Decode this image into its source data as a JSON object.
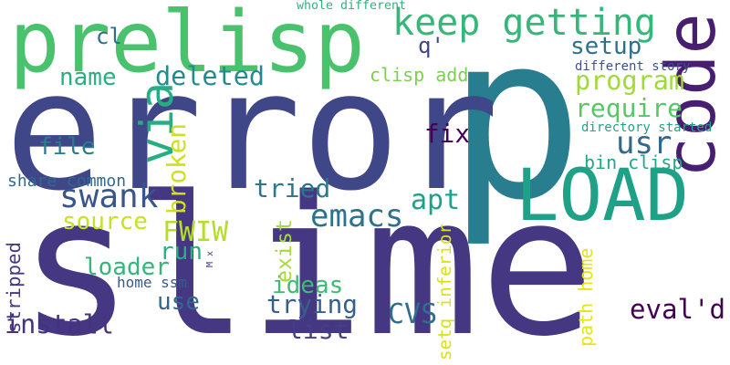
{
  "words": [
    {
      "text": "slime",
      "color": "#453781"
    },
    {
      "text": "p",
      "color": "#287d8e"
    },
    {
      "text": "error",
      "color": "#3f4788"
    },
    {
      "text": "prelisp",
      "color": "#4ac16d"
    },
    {
      "text": "LOAD",
      "color": "#1fa187"
    },
    {
      "text": "code",
      "color": "#481f70"
    },
    {
      "text": "keep getting",
      "color": "#35b779"
    },
    {
      "text": "swank",
      "color": "#39568c"
    },
    {
      "text": "emacs",
      "color": "#2c728e"
    },
    {
      "text": "via",
      "color": "#27ad81"
    },
    {
      "text": "usr",
      "color": "#31688e"
    },
    {
      "text": "deleted",
      "color": "#238a8d"
    },
    {
      "text": "name",
      "color": "#29af7f"
    },
    {
      "text": "program",
      "color": "#a0da39"
    },
    {
      "text": "require",
      "color": "#56c667"
    },
    {
      "text": "setup",
      "color": "#2d708e"
    },
    {
      "text": "fix",
      "color": "#440154"
    },
    {
      "text": "file",
      "color": "#287c8e"
    },
    {
      "text": "apt",
      "color": "#1fa088"
    },
    {
      "text": "tried",
      "color": "#2a778e"
    },
    {
      "text": "source",
      "color": "#cae11f"
    },
    {
      "text": "FWIW",
      "color": "#b5de2b"
    },
    {
      "text": "run",
      "color": "#2ab07f"
    },
    {
      "text": "loader",
      "color": "#33b679"
    },
    {
      "text": "ideas",
      "color": "#3dbc74"
    },
    {
      "text": "trying",
      "color": "#355f8d"
    },
    {
      "text": "use",
      "color": "#30698e"
    },
    {
      "text": "list",
      "color": "#433e85"
    },
    {
      "text": "install",
      "color": "#46327e"
    },
    {
      "text": "CVS",
      "color": "#2f6c8e"
    },
    {
      "text": "eval'd",
      "color": "#440154"
    },
    {
      "text": "broken",
      "color": "#d0e11c"
    },
    {
      "text": "exist",
      "color": "#a5db36"
    },
    {
      "text": "stripped",
      "color": "#453882"
    },
    {
      "text": "path home",
      "color": "#e5e419"
    },
    {
      "text": "setq inferior",
      "color": "#d8e219"
    },
    {
      "text": "q'",
      "color": "#404688"
    },
    {
      "text": "cl",
      "color": "#2e6e8e"
    },
    {
      "text": "clisp add",
      "color": "#7ad151"
    },
    {
      "text": "bin clisp",
      "color": "#22a785"
    },
    {
      "text": "share common",
      "color": "#31688e"
    },
    {
      "text": "home ssm",
      "color": "#375a8c"
    },
    {
      "text": "M x",
      "color": "#424186"
    },
    {
      "text": "directory started",
      "color": "#20a386"
    },
    {
      "text": "different story",
      "color": "#3b528b"
    },
    {
      "text": "whole different",
      "color": "#2db27d"
    }
  ]
}
